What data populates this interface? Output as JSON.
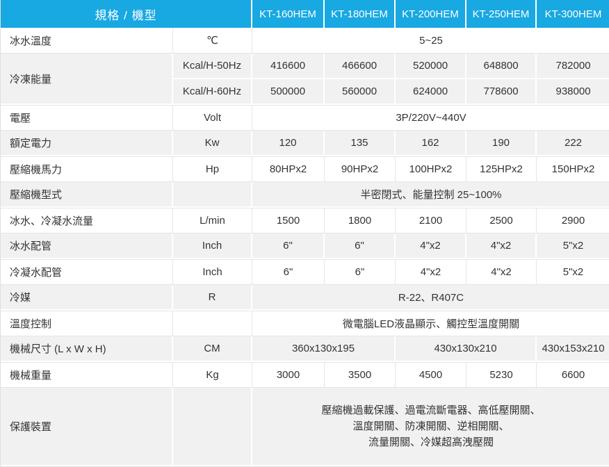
{
  "table": {
    "header": {
      "spec_label": "規格 / 機型",
      "models": [
        "KT-160HEM",
        "KT-180HEM",
        "KT-200HEM",
        "KT-250HEM",
        "KT-300HEM"
      ]
    },
    "rows": [
      {
        "label": "冰水溫度",
        "unit": "℃",
        "shaded": false,
        "cells": [
          {
            "text": "5~25",
            "span": 5
          }
        ]
      },
      {
        "label": "冷凍能量",
        "label_rowspan": 2,
        "unit": "Kcal/H-50Hz",
        "shaded": true,
        "cells": [
          {
            "text": "416600",
            "span": 1
          },
          {
            "text": "466600",
            "span": 1
          },
          {
            "text": "520000",
            "span": 1
          },
          {
            "text": "648800",
            "span": 1
          },
          {
            "text": "782000",
            "span": 1
          }
        ]
      },
      {
        "label": null,
        "unit": "Kcal/H-60Hz",
        "shaded": true,
        "cells": [
          {
            "text": "500000",
            "span": 1
          },
          {
            "text": "560000",
            "span": 1
          },
          {
            "text": "624000",
            "span": 1
          },
          {
            "text": "778600",
            "span": 1
          },
          {
            "text": "938000",
            "span": 1
          }
        ]
      },
      {
        "label": "電壓",
        "unit": "Volt",
        "shaded": false,
        "cells": [
          {
            "text": "3P/220V~440V",
            "span": 5
          }
        ]
      },
      {
        "label": "額定電力",
        "unit": "Kw",
        "shaded": true,
        "cells": [
          {
            "text": "120",
            "span": 1
          },
          {
            "text": "135",
            "span": 1
          },
          {
            "text": "162",
            "span": 1
          },
          {
            "text": "190",
            "span": 1
          },
          {
            "text": "222",
            "span": 1
          }
        ]
      },
      {
        "label": "壓縮機馬力",
        "unit": "Hp",
        "shaded": false,
        "cells": [
          {
            "text": "80HPx2",
            "span": 1
          },
          {
            "text": "90HPx2",
            "span": 1
          },
          {
            "text": "100HPx2",
            "span": 1
          },
          {
            "text": "125HPx2",
            "span": 1
          },
          {
            "text": "150HPx2",
            "span": 1
          }
        ]
      },
      {
        "label": "壓縮機型式",
        "unit": "",
        "shaded": true,
        "cells": [
          {
            "text": "半密閉式、能量控制 25~100%",
            "span": 5
          }
        ]
      },
      {
        "label": "冰水、冷凝水流量",
        "unit": "L/min",
        "shaded": false,
        "cells": [
          {
            "text": "1500",
            "span": 1
          },
          {
            "text": "1800",
            "span": 1
          },
          {
            "text": "2100",
            "span": 1
          },
          {
            "text": "2500",
            "span": 1
          },
          {
            "text": "2900",
            "span": 1
          }
        ]
      },
      {
        "label": "冰水配管",
        "unit": "Inch",
        "shaded": true,
        "cells": [
          {
            "text": "6\"",
            "span": 1
          },
          {
            "text": "6\"",
            "span": 1
          },
          {
            "text": "4\"x2",
            "span": 1
          },
          {
            "text": "4\"x2",
            "span": 1
          },
          {
            "text": "5\"x2",
            "span": 1
          }
        ]
      },
      {
        "label": "冷凝水配管",
        "unit": "Inch",
        "shaded": false,
        "cells": [
          {
            "text": "6\"",
            "span": 1
          },
          {
            "text": "6\"",
            "span": 1
          },
          {
            "text": "4\"x2",
            "span": 1
          },
          {
            "text": "4\"x2",
            "span": 1
          },
          {
            "text": "5\"x2",
            "span": 1
          }
        ]
      },
      {
        "label": "冷媒",
        "unit": "R",
        "shaded": true,
        "cells": [
          {
            "text": "R-22、R407C",
            "span": 5
          }
        ]
      },
      {
        "label": "溫度控制",
        "unit": "",
        "shaded": false,
        "cells": [
          {
            "text": "微電腦LED液晶顯示、觸控型溫度開關",
            "span": 5
          }
        ]
      },
      {
        "label": "機械尺寸 (L x W x H)",
        "unit": "CM",
        "shaded": true,
        "cells": [
          {
            "text": "360x130x195",
            "span": 2
          },
          {
            "text": "430x130x210",
            "span": 2
          },
          {
            "text": "430x153x210",
            "span": 1
          }
        ]
      },
      {
        "label": "機械重量",
        "unit": "Kg",
        "shaded": false,
        "cells": [
          {
            "text": "3000",
            "span": 1
          },
          {
            "text": "3500",
            "span": 1
          },
          {
            "text": "4500",
            "span": 1
          },
          {
            "text": "5230",
            "span": 1
          },
          {
            "text": "6600",
            "span": 1
          }
        ]
      },
      {
        "label": "保護裝置",
        "unit": "",
        "shaded": true,
        "tall": true,
        "cells": [
          {
            "span": 5,
            "lines": [
              "壓縮機過載保護、過電流斷電器、高低壓開關、",
              "溫度開關、防凍開關、逆相開關、",
              "流量開關、冷媒超高洩壓閥"
            ]
          }
        ]
      }
    ]
  },
  "colors": {
    "header_bg": "#18A8E2",
    "header_text": "#FFFFFF",
    "row_alt_bg": "#F1F1F1",
    "row_bg": "#FFFFFF",
    "body_text": "#333333",
    "grid_line": "#E5E5E5"
  }
}
